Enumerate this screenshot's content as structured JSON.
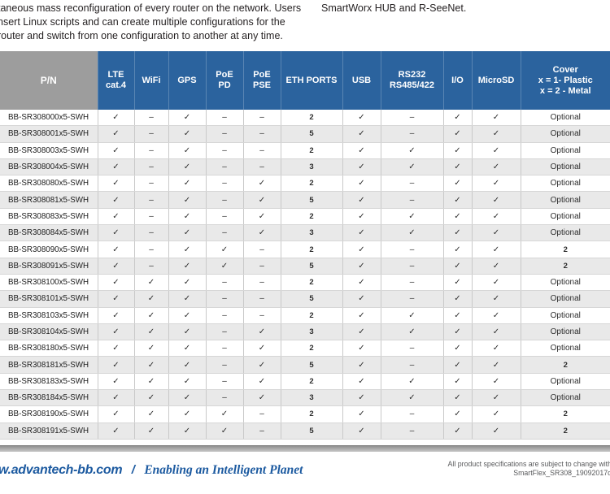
{
  "intro": {
    "left": "taneous mass reconfiguration of every router on the network. Users\nnsert Linux scripts and can create multiple configurations for the\nrouter and switch from one configuration to another at any time.",
    "right": "SmartWorx HUB and R-SeeNet."
  },
  "table": {
    "columns": [
      {
        "id": "pn",
        "label": "P/N"
      },
      {
        "id": "lte-cat4",
        "label": "LTE\ncat.4"
      },
      {
        "id": "wifi",
        "label": "WiFi"
      },
      {
        "id": "gps",
        "label": "GPS"
      },
      {
        "id": "poe-pd",
        "label": "PoE\nPD"
      },
      {
        "id": "poe-pse",
        "label": "PoE\nPSE"
      },
      {
        "id": "eth-ports",
        "label": "ETH PORTS"
      },
      {
        "id": "usb",
        "label": "USB"
      },
      {
        "id": "rs232-rs485",
        "label": "RS232\nRS485/422"
      },
      {
        "id": "io",
        "label": "I/O"
      },
      {
        "id": "microsd",
        "label": "MicroSD"
      },
      {
        "id": "cover",
        "label": "Cover\nx = 1- Plastic\nx = 2 - Metal"
      }
    ],
    "rows": [
      {
        "pn": "BB-SR308000x5-SWH",
        "cells": [
          "✓",
          "–",
          "✓",
          "–",
          "–",
          "2",
          "✓",
          "–",
          "✓",
          "✓",
          "Optional"
        ]
      },
      {
        "pn": "BB-SR308001x5-SWH",
        "cells": [
          "✓",
          "–",
          "✓",
          "–",
          "–",
          "5",
          "✓",
          "–",
          "✓",
          "✓",
          "Optional"
        ]
      },
      {
        "pn": "BB-SR308003x5-SWH",
        "cells": [
          "✓",
          "–",
          "✓",
          "–",
          "–",
          "2",
          "✓",
          "✓",
          "✓",
          "✓",
          "Optional"
        ]
      },
      {
        "pn": "BB-SR308004x5-SWH",
        "cells": [
          "✓",
          "–",
          "✓",
          "–",
          "–",
          "3",
          "✓",
          "✓",
          "✓",
          "✓",
          "Optional"
        ]
      },
      {
        "pn": "BB-SR308080x5-SWH",
        "cells": [
          "✓",
          "–",
          "✓",
          "–",
          "✓",
          "2",
          "✓",
          "–",
          "✓",
          "✓",
          "Optional"
        ]
      },
      {
        "pn": "BB-SR308081x5-SWH",
        "cells": [
          "✓",
          "–",
          "✓",
          "–",
          "✓",
          "5",
          "✓",
          "–",
          "✓",
          "✓",
          "Optional"
        ]
      },
      {
        "pn": "BB-SR308083x5-SWH",
        "cells": [
          "✓",
          "–",
          "✓",
          "–",
          "✓",
          "2",
          "✓",
          "✓",
          "✓",
          "✓",
          "Optional"
        ]
      },
      {
        "pn": "BB-SR308084x5-SWH",
        "cells": [
          "✓",
          "–",
          "✓",
          "–",
          "✓",
          "3",
          "✓",
          "✓",
          "✓",
          "✓",
          "Optional"
        ]
      },
      {
        "pn": "BB-SR308090x5-SWH",
        "cells": [
          "✓",
          "–",
          "✓",
          "✓",
          "–",
          "2",
          "✓",
          "–",
          "✓",
          "✓",
          "2"
        ]
      },
      {
        "pn": "BB-SR308091x5-SWH",
        "cells": [
          "✓",
          "–",
          "✓",
          "✓",
          "–",
          "5",
          "✓",
          "–",
          "✓",
          "✓",
          "2"
        ]
      },
      {
        "pn": "BB-SR308100x5-SWH",
        "cells": [
          "✓",
          "✓",
          "✓",
          "–",
          "–",
          "2",
          "✓",
          "–",
          "✓",
          "✓",
          "Optional"
        ]
      },
      {
        "pn": "BB-SR308101x5-SWH",
        "cells": [
          "✓",
          "✓",
          "✓",
          "–",
          "–",
          "5",
          "✓",
          "–",
          "✓",
          "✓",
          "Optional"
        ]
      },
      {
        "pn": "BB-SR308103x5-SWH",
        "cells": [
          "✓",
          "✓",
          "✓",
          "–",
          "–",
          "2",
          "✓",
          "✓",
          "✓",
          "✓",
          "Optional"
        ]
      },
      {
        "pn": "BB-SR308104x5-SWH",
        "cells": [
          "✓",
          "✓",
          "✓",
          "–",
          "✓",
          "3",
          "✓",
          "✓",
          "✓",
          "✓",
          "Optional"
        ]
      },
      {
        "pn": "BB-SR308180x5-SWH",
        "cells": [
          "✓",
          "✓",
          "✓",
          "–",
          "✓",
          "2",
          "✓",
          "–",
          "✓",
          "✓",
          "Optional"
        ]
      },
      {
        "pn": "BB-SR308181x5-SWH",
        "cells": [
          "✓",
          "✓",
          "✓",
          "–",
          "✓",
          "5",
          "✓",
          "–",
          "✓",
          "✓",
          "2"
        ]
      },
      {
        "pn": "BB-SR308183x5-SWH",
        "cells": [
          "✓",
          "✓",
          "✓",
          "–",
          "✓",
          "2",
          "✓",
          "✓",
          "✓",
          "✓",
          "Optional"
        ]
      },
      {
        "pn": "BB-SR308184x5-SWH",
        "cells": [
          "✓",
          "✓",
          "✓",
          "–",
          "✓",
          "3",
          "✓",
          "✓",
          "✓",
          "✓",
          "Optional"
        ]
      },
      {
        "pn": "BB-SR308190x5-SWH",
        "cells": [
          "✓",
          "✓",
          "✓",
          "✓",
          "–",
          "2",
          "✓",
          "–",
          "✓",
          "✓",
          "2"
        ]
      },
      {
        "pn": "BB-SR308191x5-SWH",
        "cells": [
          "✓",
          "✓",
          "✓",
          "✓",
          "–",
          "5",
          "✓",
          "–",
          "✓",
          "✓",
          "2"
        ]
      }
    ]
  },
  "footer": {
    "site": "w.advantech-bb.com",
    "separator": "/",
    "tagline": "Enabling an Intelligent Planet",
    "note": "All product specifications are subject to change with\nSmartFlex_SR308_19092017d"
  },
  "colors": {
    "header_blue": "#2b639e",
    "pn_header_gray": "#9d9d9d",
    "row_alt_gray": "#e9e9e9",
    "footer_blue": "#1c5aa0"
  }
}
